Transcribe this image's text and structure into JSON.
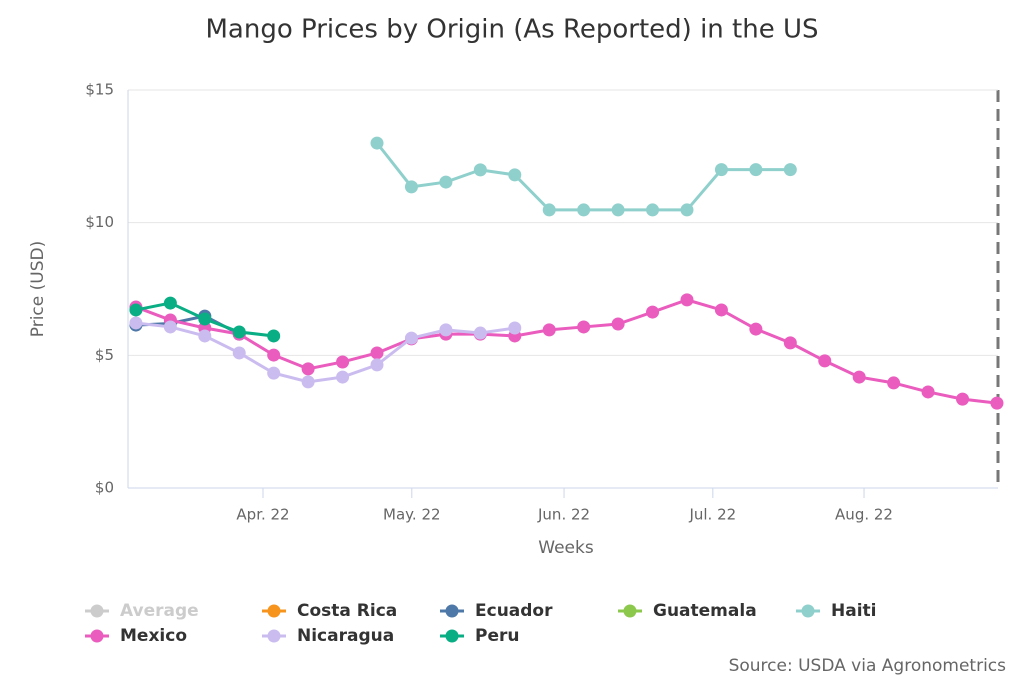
{
  "chart_data": {
    "type": "line",
    "title": "Mango Prices by Origin (As Reported) in the US",
    "y_label": "Price (USD)",
    "x_label": "Weeks",
    "source": "Source: USDA via Agronometrics",
    "categories": [
      null,
      null,
      null,
      null,
      null,
      null,
      null,
      null,
      null,
      null,
      null,
      null,
      null,
      null,
      null,
      null,
      null,
      null,
      null,
      null,
      null,
      null,
      null,
      null,
      null,
      null
    ],
    "xlim": [
      -0.23,
      25.03
    ],
    "xticks": [
      {
        "value": 3.69,
        "label": "Apr. 22"
      },
      {
        "value": 8.01,
        "label": "May. 22"
      },
      {
        "value": 12.43,
        "label": "Jun. 22"
      },
      {
        "value": 16.75,
        "label": "Jul. 22"
      },
      {
        "value": 21.14,
        "label": "Aug. 22"
      }
    ],
    "ylim": [
      0,
      15
    ],
    "yticks": [
      {
        "value": 0,
        "label": "$0"
      },
      {
        "value": 5,
        "label": "$5"
      },
      {
        "value": 10,
        "label": "$10"
      },
      {
        "value": 15,
        "label": "$15"
      }
    ],
    "grid": true,
    "legend": "bottom",
    "series": [
      {
        "name": "Average",
        "color": "#cccccc",
        "visible": false,
        "values": [
          null,
          null,
          null,
          null,
          null,
          null,
          null,
          null,
          null,
          null,
          null,
          null,
          null,
          null,
          null,
          null,
          null,
          null,
          null,
          null,
          null,
          null,
          null,
          null,
          null,
          null
        ]
      },
      {
        "name": "Costa Rica",
        "color": "#f7941d",
        "values": [
          null,
          null,
          null,
          null,
          null,
          null,
          null,
          null,
          null,
          null,
          null,
          null,
          null,
          null,
          null,
          null,
          null,
          null,
          null,
          null,
          null,
          null,
          null,
          null,
          null,
          null
        ]
      },
      {
        "name": "Ecuador",
        "color": "#4d78a8",
        "values": [
          6.14,
          6.2,
          6.48,
          5.8,
          null,
          null,
          null,
          null,
          null,
          null,
          null,
          null,
          null,
          null,
          null,
          null,
          null,
          null,
          null,
          null,
          null,
          null,
          null,
          null,
          null,
          null
        ]
      },
      {
        "name": "Guatemala",
        "color": "#8cc84b",
        "values": [
          null,
          null,
          null,
          null,
          null,
          null,
          null,
          null,
          null,
          null,
          null,
          null,
          null,
          null,
          null,
          null,
          null,
          null,
          null,
          null,
          null,
          null,
          null,
          null,
          null,
          null
        ]
      },
      {
        "name": "Haiti",
        "color": "#8fd0cc",
        "values": [
          null,
          null,
          null,
          null,
          null,
          null,
          null,
          13.0,
          11.35,
          11.53,
          11.99,
          11.8,
          10.48,
          10.48,
          10.48,
          10.48,
          10.48,
          12.0,
          12.0,
          12.0,
          null,
          null,
          null,
          null,
          null,
          null
        ]
      },
      {
        "name": "Mexico",
        "color": "#ea5cbd",
        "values": [
          6.82,
          6.33,
          6.03,
          5.8,
          5.01,
          4.49,
          4.75,
          5.09,
          5.62,
          5.8,
          5.8,
          5.73,
          5.96,
          6.07,
          6.18,
          6.63,
          7.09,
          6.71,
          5.99,
          5.47,
          4.79,
          4.18,
          3.96,
          3.62,
          3.35,
          3.2
        ]
      },
      {
        "name": "Nicaragua",
        "color": "#cbbcf0",
        "values": [
          6.22,
          6.07,
          5.73,
          5.09,
          4.33,
          4.0,
          4.18,
          4.64,
          5.65,
          5.96,
          5.84,
          6.03,
          null,
          null,
          null,
          null,
          null,
          null,
          null,
          null,
          null,
          null,
          null,
          null,
          null,
          null
        ]
      },
      {
        "name": "Peru",
        "color": "#0aae84",
        "values": [
          6.71,
          6.97,
          6.37,
          5.88,
          5.73,
          null,
          null,
          null,
          null,
          null,
          null,
          null,
          null,
          null,
          null,
          null,
          null,
          null,
          null,
          null,
          null,
          null,
          null,
          null,
          null,
          null
        ]
      }
    ]
  }
}
